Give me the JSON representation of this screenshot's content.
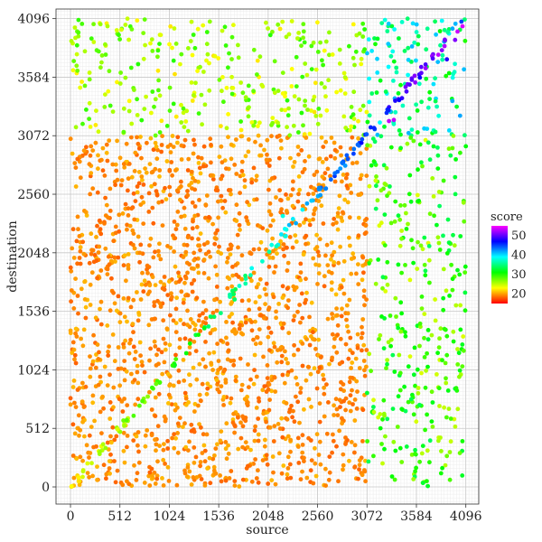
{
  "chart_data": {
    "type": "scatter",
    "title": "",
    "xlabel": "source",
    "ylabel": "destination",
    "xlim": [
      -150,
      4230
    ],
    "ylim": [
      -150,
      4180
    ],
    "x_ticks": [
      0,
      512,
      1024,
      1536,
      2048,
      2560,
      3072,
      3584,
      4096
    ],
    "x_tick_labels": [
      "0",
      "512",
      "1024",
      "1536",
      "2048",
      "2560",
      "3072",
      "3584",
      "4096"
    ],
    "y_ticks": [
      0,
      512,
      1024,
      1536,
      2048,
      2560,
      3072,
      3584,
      4096
    ],
    "y_tick_labels": [
      "0",
      "512",
      "1024",
      "1536",
      "2048",
      "2560",
      "3072",
      "3584",
      "4096"
    ],
    "minor_grid_step": 32,
    "grid": true,
    "color_scale": {
      "name": "score",
      "min": 15,
      "max": 55,
      "ticks": [
        20,
        30,
        40,
        50
      ],
      "tick_labels": [
        "20",
        "30",
        "40",
        "50"
      ],
      "palette": "rainbow red-to-magenta",
      "placement": "right"
    },
    "regions": [
      {
        "x": [
          0,
          3072
        ],
        "y": [
          0,
          3072
        ],
        "score": [
          18,
          21
        ],
        "density": 1.0
      },
      {
        "x": [
          3072,
          4096
        ],
        "y": [
          3072,
          4096
        ],
        "score": [
          30,
          42
        ],
        "density": 1.0
      },
      {
        "x": [
          0,
          3072
        ],
        "y": [
          3072,
          4096
        ],
        "score": [
          22,
          30
        ],
        "density": 0.9
      },
      {
        "x": [
          3072,
          4096
        ],
        "y": [
          0,
          3072
        ],
        "score": [
          24,
          34
        ],
        "density": 0.9
      },
      {
        "x": [
          0,
          1536
        ],
        "y": [
          0,
          1536
        ],
        "score": [
          18,
          21
        ],
        "density": 0.5
      },
      {
        "x": [
          0,
          1536
        ],
        "y": [
          1536,
          3072
        ],
        "score": [
          18,
          20
        ],
        "density": 0.6
      },
      {
        "x": [
          1536,
          3072
        ],
        "y": [
          0,
          1536
        ],
        "score": [
          18,
          20
        ],
        "density": 0.6
      },
      {
        "x": [
          1536,
          3072
        ],
        "y": [
          1536,
          3072
        ],
        "score": [
          18,
          21
        ],
        "density": 0.5
      }
    ],
    "diagonal": {
      "x": [
        0,
        4096
      ],
      "score": [
        22,
        54
      ],
      "points": 150,
      "spread": 40
    },
    "highlights": [
      {
        "x": 3350,
        "y": 3210,
        "score": 53
      },
      {
        "x": 3300,
        "y": 3200,
        "score": 53
      },
      {
        "x": 3985,
        "y": 3910,
        "score": 51
      },
      {
        "x": 3900,
        "y": 3740,
        "score": 48
      },
      {
        "x": 3620,
        "y": 3580,
        "score": 47
      },
      {
        "x": 4050,
        "y": 4070,
        "score": 45
      },
      {
        "x": 2200,
        "y": 2370,
        "score": 38
      },
      {
        "x": 1700,
        "y": 1640,
        "score": 34
      }
    ],
    "point_count": 4200
  }
}
